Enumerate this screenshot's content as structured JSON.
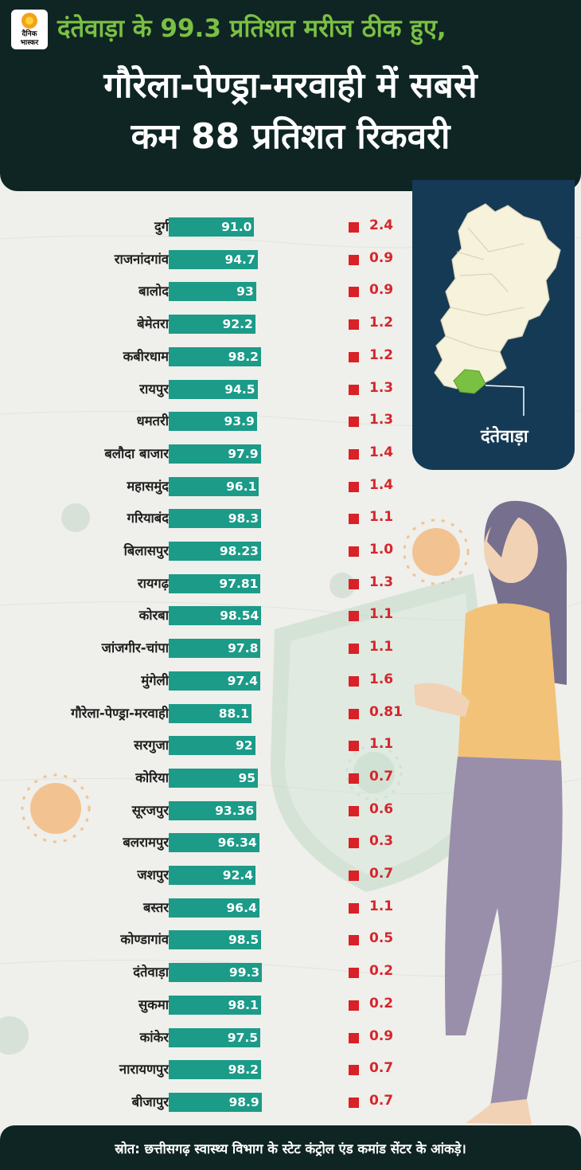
{
  "brand": {
    "logo_line1": "दैनिक",
    "logo_line2": "भास्कर"
  },
  "header": {
    "subtitle": "दंतेवाड़ा के 99.3 प्रतिशत मरीज ठीक हुए,",
    "title_line1": "गौरेला-पेण्ड्रा-मरवाही में सबसे",
    "title_line2": "कम 88 प्रतिशत रिकवरी"
  },
  "map": {
    "label": "दंतेवाड़ा",
    "highlight_color": "#7ac043"
  },
  "colors": {
    "bar": "#1b9b88",
    "marker": "#d92127",
    "header_bg": "#0f2524",
    "map_bg": "#153a55"
  },
  "chart_data": {
    "type": "bar",
    "orientation": "horizontal",
    "categories": [
      "दुर्ग",
      "राजनांदगांव",
      "बालोद",
      "बेमेतरा",
      "कबीरधाम",
      "रायपुर",
      "धमतरी",
      "बलौदा बाजार",
      "महासमुंद",
      "गरियाबंद",
      "बिलासपुर",
      "रायगढ़",
      "कोरबा",
      "जांजगीर-चांपा",
      "मुंगेली",
      "गौरेला-पेण्ड्रा-मरवाही",
      "सरगुजा",
      "कोरिया",
      "सूरजपुर",
      "बलरामपुर",
      "जशपुर",
      "बस्तर",
      "कोण्डागांव",
      "दंतेवाड़ा",
      "सुकमा",
      "कांकेर",
      "नारायणपुर",
      "बीजापुर"
    ],
    "series": [
      {
        "values": [
          91.0,
          94.7,
          93,
          92.2,
          98.2,
          94.5,
          93.9,
          97.9,
          96.1,
          98.3,
          98.23,
          97.81,
          98.54,
          97.8,
          97.4,
          88.1,
          92,
          95,
          93.36,
          96.34,
          92.4,
          96.4,
          98.5,
          99.3,
          98.1,
          97.5,
          98.2,
          98.9
        ]
      },
      {
        "values": [
          2.4,
          0.9,
          0.9,
          1.2,
          1.2,
          1.3,
          1.3,
          1.4,
          1.4,
          1.1,
          1.0,
          1.3,
          1.1,
          1.1,
          1.6,
          0.81,
          1.1,
          0.7,
          0.6,
          0.3,
          0.7,
          1.1,
          0.5,
          0.2,
          0.2,
          0.9,
          0.7,
          0.7
        ]
      }
    ],
    "value_labels": [
      "91.0",
      "94.7",
      "93",
      "92.2",
      "98.2",
      "94.5",
      "93.9",
      "97.9",
      "96.1",
      "98.3",
      "98.23",
      "97.81",
      "98.54",
      "97.8",
      "97.4",
      "88.1",
      "92",
      "95",
      "93.36",
      "96.34",
      "92.4",
      "96.4",
      "98.5",
      "99.3",
      "98.1",
      "97.5",
      "98.2",
      "98.9"
    ],
    "secondary_labels": [
      "2.4",
      "0.9",
      "0.9",
      "1.2",
      "1.2",
      "1.3",
      "1.3",
      "1.4",
      "1.4",
      "1.1",
      "1.0",
      "1.3",
      "1.1",
      "1.1",
      "1.6",
      "0.81",
      "1.1",
      "0.7",
      "0.6",
      "0.3",
      "0.7",
      "1.1",
      "0.5",
      "0.2",
      "0.2",
      "0.9",
      "0.7",
      "0.7"
    ],
    "axis_range": [
      0,
      100
    ],
    "title": "",
    "xlabel": "",
    "ylabel": "",
    "grid": false,
    "legend": "none"
  },
  "footer": {
    "source": "स्रोत: छत्तीसगढ़ स्वास्थ्य विभाग के स्टेट कंट्रोल एंड कमांड सेंटर के आंकड़े।"
  }
}
